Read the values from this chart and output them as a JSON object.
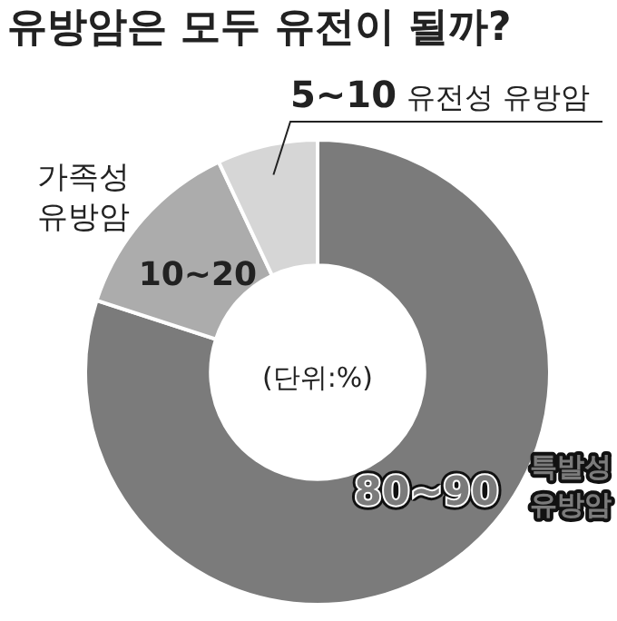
{
  "chart_data": {
    "type": "donut",
    "title": "유방암은 모두 유전이 될까?",
    "categories": [
      "특발성 유방암",
      "가족성 유방암",
      "유전성 유방암"
    ],
    "values": [
      80,
      13,
      7
    ],
    "colors": [
      "#7b7b7b",
      "#acacac",
      "#d6d6d6"
    ],
    "annotations": [
      "80~90",
      "10~20",
      "5~10",
      "(단위:%)"
    ]
  }
}
